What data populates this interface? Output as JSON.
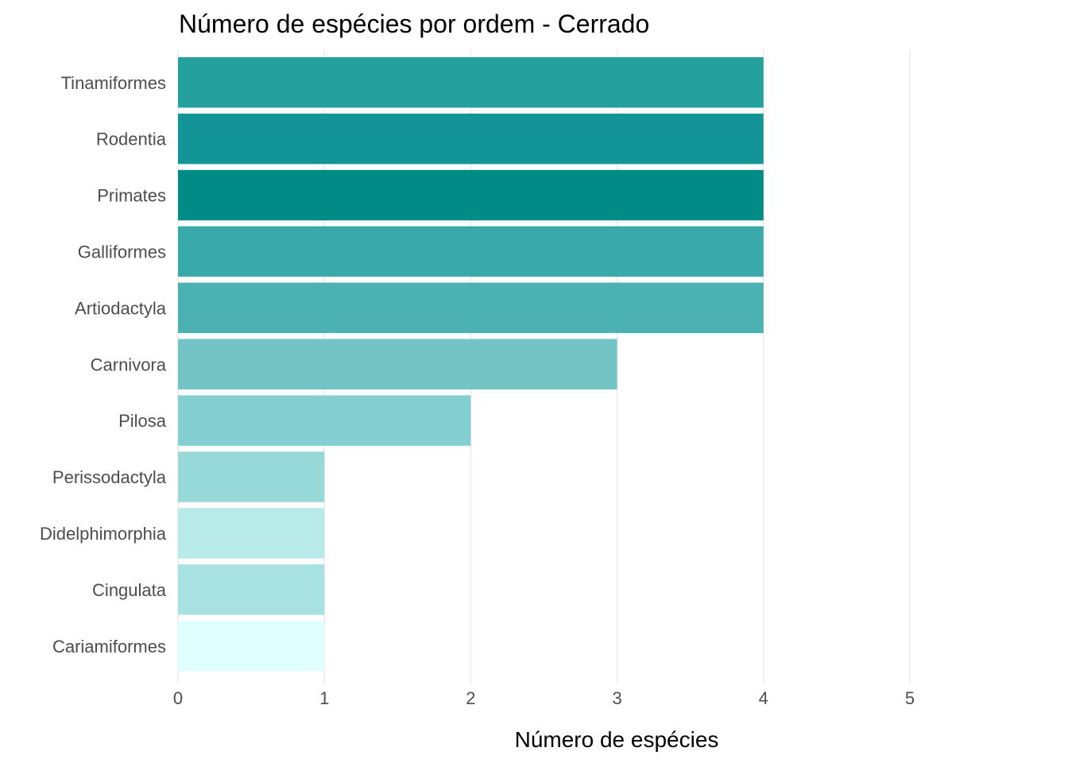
{
  "chart_data": {
    "type": "bar",
    "orientation": "horizontal",
    "title": "Número de espécies por ordem - Cerrado",
    "xlabel": "Número de espécies",
    "ylabel": "",
    "xlim": [
      0,
      5.4
    ],
    "xticks": [
      0,
      1,
      2,
      3,
      4,
      5
    ],
    "grid": true,
    "legend": "none",
    "categories": [
      "Tinamiformes",
      "Rodentia",
      "Primates",
      "Galliformes",
      "Artiodactyla",
      "Carnivora",
      "Pilosa",
      "Perissodactyla",
      "Didelphimorphia",
      "Cingulata",
      "Cariamiformes"
    ],
    "values": [
      4,
      4,
      4,
      4,
      4,
      3,
      2,
      1,
      1,
      1,
      1
    ],
    "colors": [
      "#24a19f",
      "#139595",
      "#008b87",
      "#3aa9a9",
      "#4cb1b1",
      "#72c5c4",
      "#84cfcf",
      "#97d9d8",
      "#b8eaea",
      "#a7e1e1",
      "#e0ffff"
    ]
  }
}
